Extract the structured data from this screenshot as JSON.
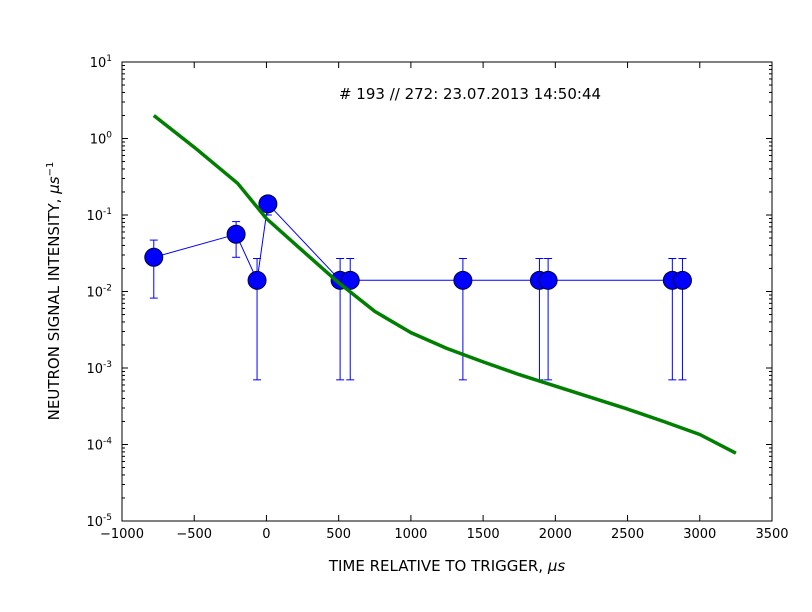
{
  "chart_data": {
    "type": "scatter",
    "annotation": "# 193 // 272: 23.07.2013 14:50:44",
    "xlabel_text": "TIME RELATIVE TO TRIGGER, ",
    "xlabel_unit": "μs",
    "ylabel_text": "NEUTRON SIGNAL INTENSITY, ",
    "ylabel_unit": "μs",
    "ylabel_exp": "−1",
    "xlim": [
      -1000,
      3500
    ],
    "ylim": [
      1e-05,
      10
    ],
    "yscale": "log",
    "grid": false,
    "xticks": [
      -1000,
      -500,
      0,
      500,
      1000,
      1500,
      2000,
      2500,
      3000,
      3500
    ],
    "xtick_labels": [
      "−1000",
      "−500",
      "0",
      "500",
      "1000",
      "1500",
      "2000",
      "2500",
      "3000",
      "3500"
    ],
    "yticks": [
      {
        "value": 1e-05,
        "base": "10",
        "exp": "-5"
      },
      {
        "value": 0.0001,
        "base": "10",
        "exp": "-4"
      },
      {
        "value": 0.001,
        "base": "10",
        "exp": "-3"
      },
      {
        "value": 0.01,
        "base": "10",
        "exp": "-2"
      },
      {
        "value": 0.1,
        "base": "10",
        "exp": "-1"
      },
      {
        "value": 1,
        "base": "10",
        "exp": "0"
      },
      {
        "value": 10,
        "base": "10",
        "exp": "1"
      }
    ],
    "series": [
      {
        "kind": "points_with_errorbars",
        "color": "#0000ff",
        "x": [
          -780,
          -210,
          -65,
          10,
          510,
          580,
          1360,
          1890,
          1950,
          2810,
          2880
        ],
        "y": [
          0.028,
          0.056,
          0.014,
          0.14,
          0.014,
          0.014,
          0.014,
          0.014,
          0.014,
          0.014,
          0.014
        ],
        "ylow": [
          0.0082,
          0.028,
          0.0007,
          0.1,
          0.0007,
          0.0007,
          0.0007,
          0.0007,
          0.0007,
          0.0007,
          0.0007
        ],
        "yhigh": [
          0.047,
          0.082,
          0.027,
          0.14,
          0.027,
          0.027,
          0.027,
          0.027,
          0.027,
          0.027,
          0.027
        ]
      },
      {
        "kind": "fit_curve",
        "color": "#007f00",
        "x": [
          -780,
          -500,
          -200,
          0,
          250,
          500,
          750,
          1000,
          1250,
          1500,
          1750,
          2000,
          2250,
          2500,
          2750,
          3000,
          3250
        ],
        "y": [
          2.0,
          0.77,
          0.26,
          0.09,
          0.034,
          0.013,
          0.0055,
          0.0029,
          0.0018,
          0.0012,
          0.00082,
          0.00058,
          0.00041,
          0.00029,
          0.0002,
          0.000135,
          7.7e-05
        ]
      }
    ]
  }
}
